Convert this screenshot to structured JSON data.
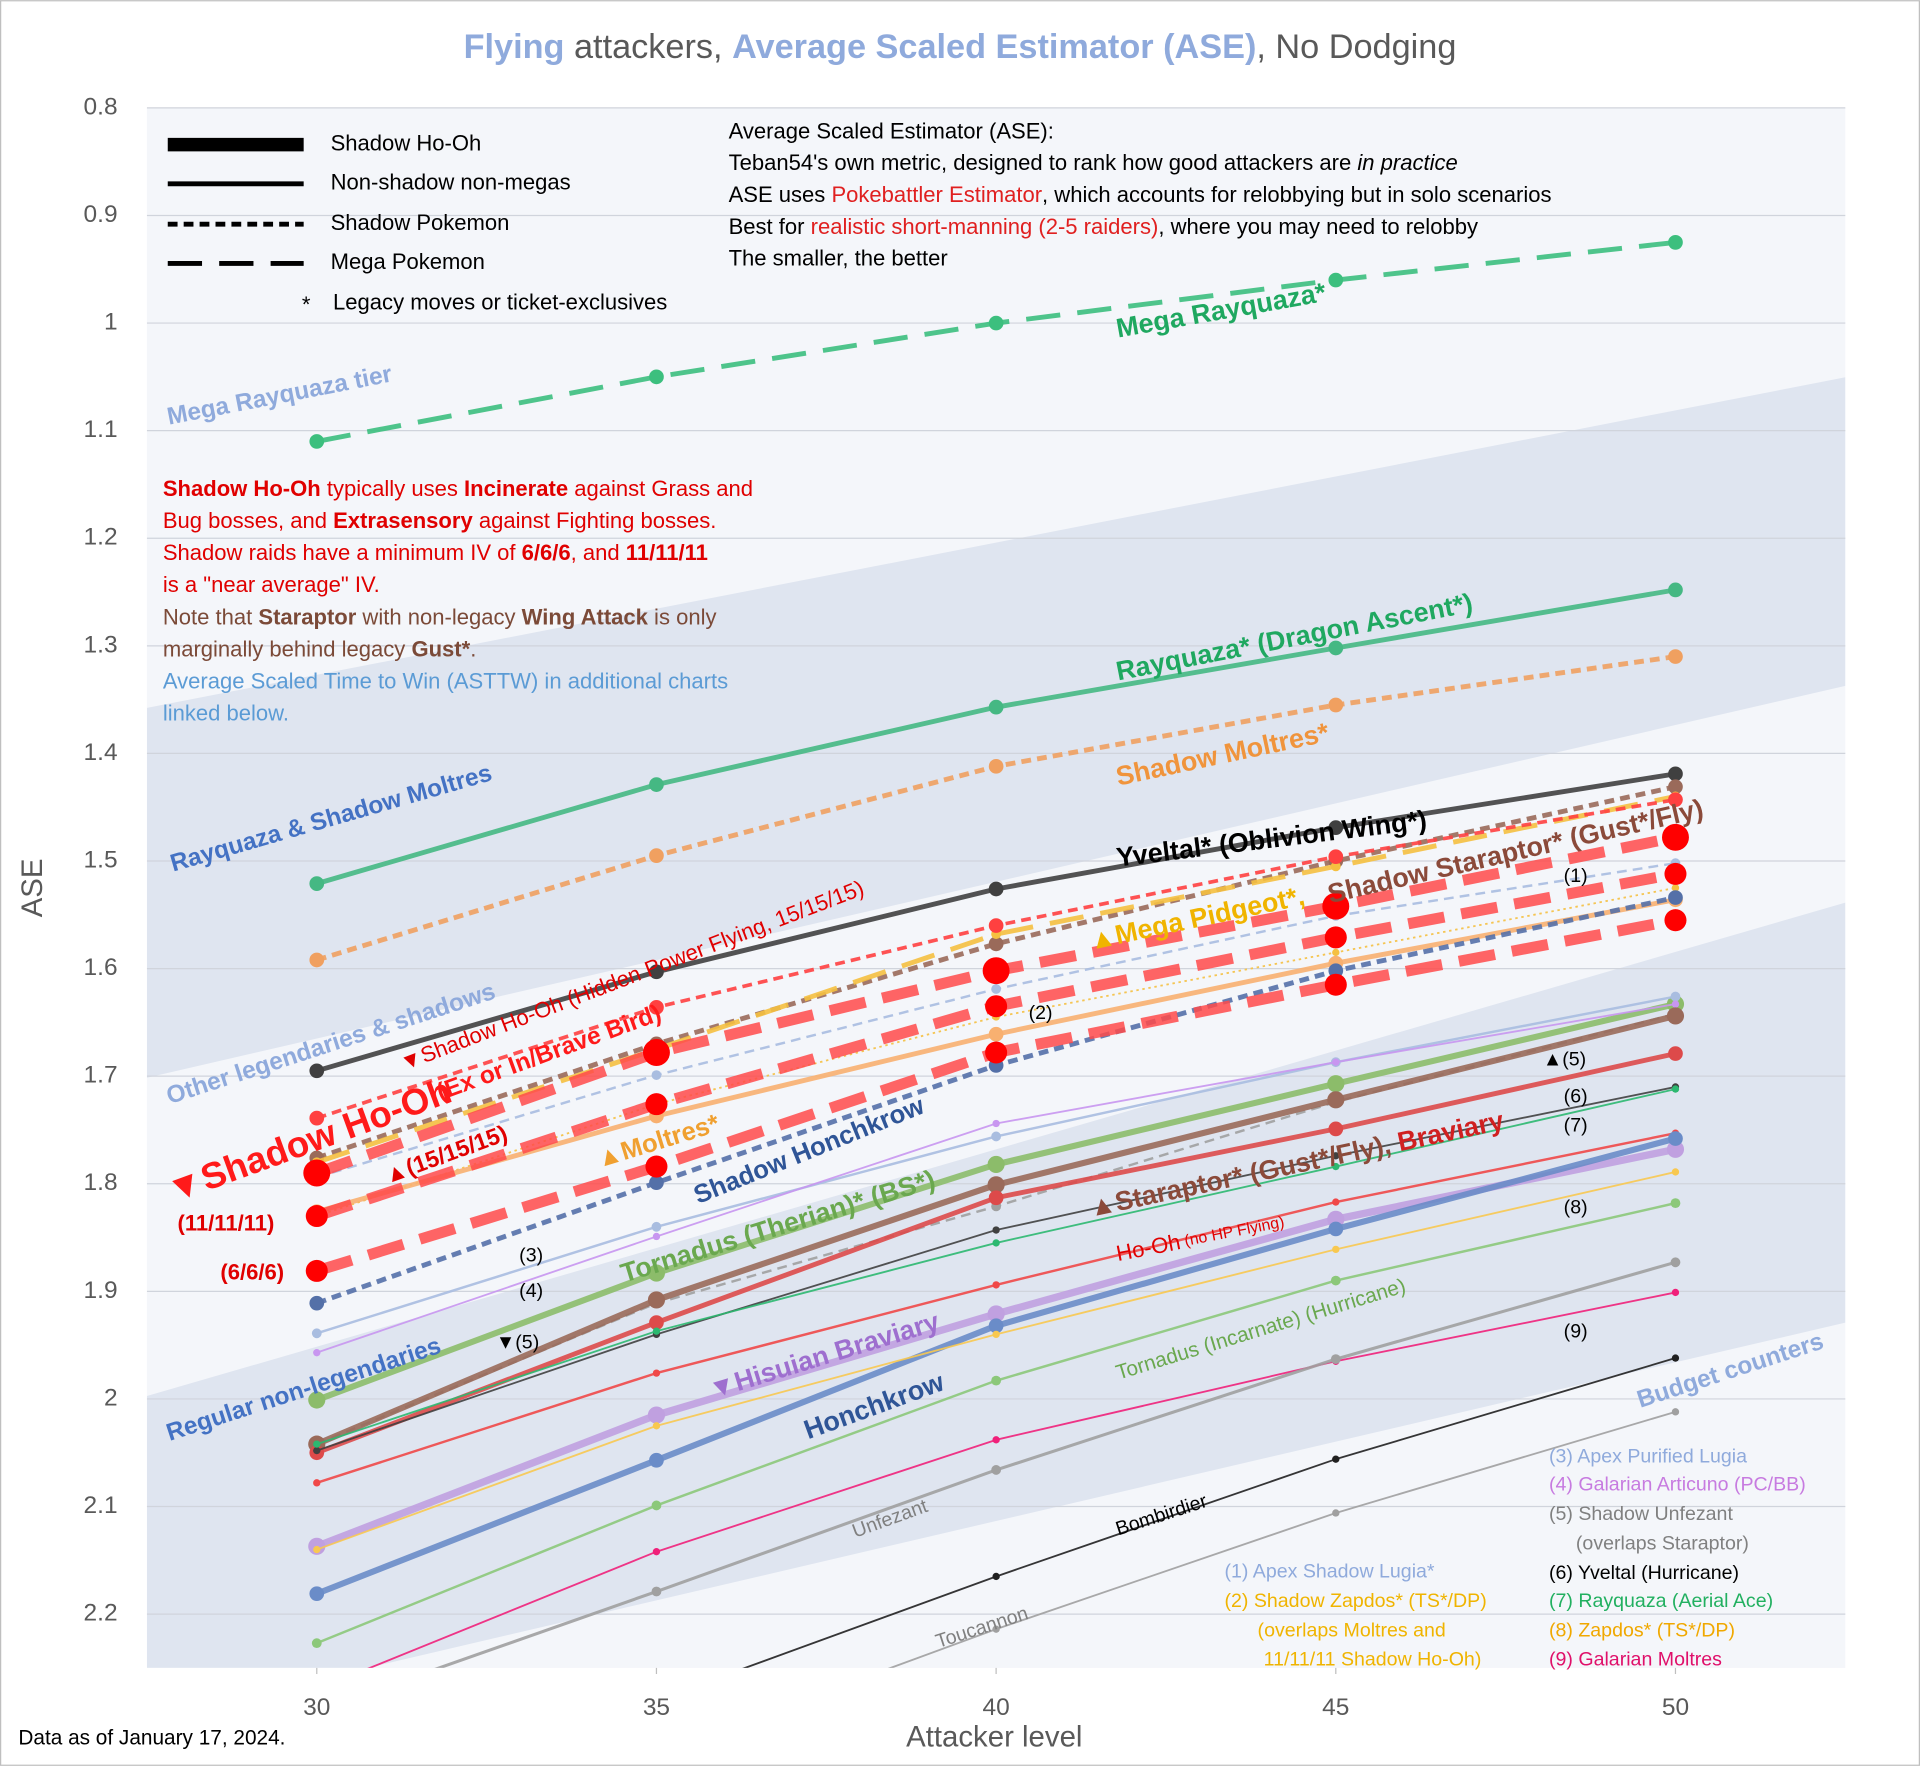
{
  "chart_data": {
    "type": "line",
    "title_runs": [
      {
        "text": "Flying",
        "color": "#8faadc",
        "bold": true
      },
      {
        "text": " attackers, ",
        "color": "#595959"
      },
      {
        "text": "Average Scaled Estimator (ASE)",
        "color": "#8faadc",
        "bold": true
      },
      {
        "text": ", No Dodging",
        "color": "#595959"
      }
    ],
    "xlabel": "Attacker level",
    "ylabel": "ASE",
    "footer": "Data as of January 17, 2024.",
    "x": [
      30,
      35,
      40,
      45,
      50
    ],
    "xlim": [
      27.5,
      52.5
    ],
    "xticks": [
      30,
      35,
      40,
      45,
      50
    ],
    "ylim": [
      2.25,
      0.8
    ],
    "yticks": [
      0.8,
      0.9,
      1,
      1.1,
      1.2,
      1.3,
      1.4,
      1.5,
      1.6,
      1.7,
      1.8,
      1.9,
      2,
      2.1,
      2.2
    ],
    "grid": true,
    "legend": [
      {
        "text": "Shadow Ho-Oh",
        "line_style": "heavy"
      },
      {
        "text": "Non-shadow non-megas",
        "line_style": "solid"
      },
      {
        "text": "Shadow Pokemon",
        "line_style": "dashed"
      },
      {
        "text": "Mega Pokemon",
        "line_style": "longdash"
      }
    ],
    "legend_note": {
      "symbol": "*",
      "text": "Legacy moves or ticket-exclusives"
    },
    "info": [
      [
        {
          "text": "Average Scaled Estimator (ASE):"
        }
      ],
      [
        {
          "text": "Teban54's own metric, designed to rank how good attackers are "
        },
        {
          "text": "in practice",
          "italic": true
        }
      ],
      [
        {
          "text": "ASE uses "
        },
        {
          "text": "Pokebattler Estimator",
          "color": "#e02020"
        },
        {
          "text": ", which accounts for relobbying but in solo scenarios"
        }
      ],
      [
        {
          "text": "Best for "
        },
        {
          "text": "realistic short-manning (2-5 raiders)",
          "color": "#e02020"
        },
        {
          "text": ", where you may need to relobby"
        }
      ],
      [
        {
          "text": "The smaller, the better"
        }
      ]
    ],
    "notes": [
      [
        {
          "text": "Shadow Ho-Oh",
          "bold": true,
          "color": "#e00000"
        },
        {
          "text": " typically uses ",
          "color": "#e00000"
        },
        {
          "text": "Incinerate",
          "bold": true,
          "color": "#e00000"
        },
        {
          "text": " against Grass and",
          "color": "#e00000"
        }
      ],
      [
        {
          "text": "Bug bosses, and ",
          "color": "#e00000"
        },
        {
          "text": "Extrasensory",
          "bold": true,
          "color": "#e00000"
        },
        {
          "text": " against Fighting bosses.",
          "color": "#e00000"
        }
      ],
      [
        {
          "text": "Shadow raids have a minimum IV of ",
          "color": "#e00000"
        },
        {
          "text": "6/6/6",
          "bold": true,
          "color": "#e00000"
        },
        {
          "text": ", and ",
          "color": "#e00000"
        },
        {
          "text": "11/11/11",
          "bold": true,
          "color": "#e00000"
        }
      ],
      [
        {
          "text": "is a \"near average\" IV.",
          "color": "#e00000"
        }
      ],
      [
        {
          "text": "Note that ",
          "color": "#7b4a38"
        },
        {
          "text": "Staraptor",
          "bold": true,
          "color": "#7b4a38"
        },
        {
          "text": " with non-legacy ",
          "color": "#7b4a38"
        },
        {
          "text": "Wing Attack",
          "bold": true,
          "color": "#7b4a38"
        },
        {
          "text": " is only",
          "color": "#7b4a38"
        }
      ],
      [
        {
          "text": "marginally behind legacy ",
          "color": "#7b4a38"
        },
        {
          "text": "Gust*",
          "bold": true,
          "color": "#7b4a38"
        },
        {
          "text": ".",
          "color": "#7b4a38"
        }
      ],
      [
        {
          "text": "Average Scaled Time to Win (ASTTW) in additional charts",
          "color": "#5b9bd5"
        }
      ],
      [
        {
          "text": "linked below.",
          "color": "#5b9bd5"
        }
      ]
    ],
    "series": [
      {
        "color": "#3cbf7e",
        "line_style": "longdash",
        "values": [
          1.11,
          1.05,
          1.0,
          0.96,
          0.925
        ]
      },
      {
        "color": "#45b883",
        "line_style": "solid",
        "values": [
          1.521,
          1.429,
          1.357,
          1.302,
          1.248
        ]
      },
      {
        "color": "#f0a060",
        "line_style": "dashed",
        "values": [
          1.592,
          1.495,
          1.412,
          1.355,
          1.31
        ]
      },
      {
        "color": "#404040",
        "line_style": "solid",
        "values": [
          1.695,
          1.603,
          1.526,
          1.469,
          1.419
        ]
      },
      {
        "color": "#9a6a5a",
        "line_style": "dashed",
        "values": [
          1.776,
          1.67,
          1.577,
          1.5,
          1.431
        ]
      },
      {
        "color": "#f5c040",
        "line_style": "longdash",
        "values": [
          1.78,
          1.675,
          1.568,
          1.505,
          1.44
        ]
      },
      {
        "color": "#ff4040",
        "line_style": "dashed",
        "values": [
          1.739,
          1.636,
          1.56,
          1.496,
          1.443
        ]
      },
      {
        "color": "#a9bde0",
        "line_style": "dashed",
        "values": [
          1.794,
          1.699,
          1.619,
          1.551,
          1.502
        ]
      },
      {
        "color": "#f5c040",
        "line_style": "dotted",
        "values": [
          1.83,
          1.726,
          1.645,
          1.585,
          1.525
        ]
      },
      {
        "color": "#f8b070",
        "line_style": "solid",
        "values": [
          1.826,
          1.737,
          1.661,
          1.595,
          1.536
        ]
      },
      {
        "color": "#5470a8",
        "line_style": "dashed",
        "values": [
          1.911,
          1.799,
          1.69,
          1.602,
          1.534
        ]
      },
      {
        "color": "#8cbc6a",
        "line_style": "solid",
        "values": [
          2.001,
          1.883,
          1.782,
          1.707,
          1.633
        ]
      },
      {
        "color": "#a9bde0",
        "line_style": "solid",
        "values": [
          1.939,
          1.84,
          1.756,
          1.687,
          1.626
        ]
      },
      {
        "color": "#c896f0",
        "line_style": "solid",
        "values": [
          1.957,
          1.849,
          1.744,
          1.687,
          1.633
        ]
      },
      {
        "color": "#a0a0a0",
        "line_style": "dashed",
        "values": [
          2.042,
          1.911,
          1.821,
          1.724,
          1.642
        ]
      },
      {
        "color": "#9a6a5a",
        "line_style": "solid",
        "values": [
          2.042,
          1.908,
          1.801,
          1.722,
          1.644
        ]
      },
      {
        "color": "#dd4a4a",
        "line_style": "solid",
        "values": [
          2.05,
          1.929,
          1.813,
          1.749,
          1.679
        ]
      },
      {
        "color": "#404040",
        "line_style": "solid",
        "values": [
          2.048,
          1.94,
          1.843,
          1.774,
          1.71
        ]
      },
      {
        "color": "#2cb870",
        "line_style": "solid",
        "values": [
          2.042,
          1.937,
          1.855,
          1.784,
          1.712
        ]
      },
      {
        "color": "#f04848",
        "line_style": "solid",
        "values": [
          2.078,
          1.976,
          1.894,
          1.817,
          1.753
        ]
      },
      {
        "color": "#c0a0e0",
        "line_style": "solid",
        "values": [
          2.137,
          2.015,
          1.921,
          1.833,
          1.768
        ]
      },
      {
        "color": "#6a8cc8",
        "line_style": "solid",
        "values": [
          2.181,
          2.057,
          1.932,
          1.842,
          1.758
        ]
      },
      {
        "color": "#f8c850",
        "line_style": "solid",
        "values": [
          2.14,
          2.025,
          1.94,
          1.861,
          1.789
        ]
      },
      {
        "color": "#8cc87a",
        "line_style": "solid",
        "values": [
          2.227,
          2.099,
          1.983,
          1.89,
          1.818
        ]
      },
      {
        "color": "#f0207a",
        "line_style": "solid",
        "values": [
          2.27,
          2.142,
          2.038,
          1.965,
          1.901
        ]
      },
      {
        "color": "#a0a0a0",
        "line_style": "solid",
        "values": [
          2.29,
          2.179,
          2.066,
          1.963,
          1.873
        ]
      },
      {
        "color": "#202020",
        "line_style": "solid",
        "values": [
          null,
          2.28,
          2.165,
          2.056,
          1.962
        ]
      },
      {
        "color": "#a0a0a0",
        "line_style": "solid",
        "values": [
          null,
          2.33,
          2.214,
          2.106,
          2.012
        ]
      },
      {
        "color": "#ff4a4a",
        "line_style": "heavy",
        "values": [
          1.79,
          1.678,
          1.602,
          1.542,
          1.478
        ]
      },
      {
        "color": "#ff4a4a",
        "line_style": "heavy",
        "values": [
          1.83,
          1.726,
          1.635,
          1.571,
          1.512
        ]
      },
      {
        "color": "#ff4a4a",
        "line_style": "heavy",
        "values": [
          1.881,
          1.784,
          1.678,
          1.615,
          1.555
        ]
      }
    ],
    "annotations": [
      {
        "runs": [
          {
            "text": "Mega Rayquaza*",
            "color": "#1fa860",
            "bold": true
          }
        ]
      },
      {
        "runs": [
          {
            "text": "Rayquaza* (Dragon Ascent*)",
            "color": "#1fa860",
            "bold": true
          }
        ]
      },
      {
        "runs": [
          {
            "text": "Shadow Moltres*",
            "color": "#f0943c",
            "bold": true
          }
        ]
      },
      {
        "runs": [
          {
            "text": "Yveltal* (Oblivion Wing*)",
            "color": "#000000",
            "bold": true
          }
        ]
      },
      {
        "runs": [
          {
            "text": "▲Mega Pidgeot*,",
            "color": "#f0b400",
            "bold": true
          }
        ]
      },
      {
        "runs": [
          {
            "text": "Shadow Staraptor* (Gust*/Fly)",
            "color": "#8b4a3a",
            "bold": true
          }
        ]
      },
      {
        "runs": [
          {
            "text": "(1)",
            "color": "#000000"
          }
        ]
      },
      {
        "runs": [
          {
            "text": "(2)",
            "color": "#000000"
          }
        ]
      },
      {
        "runs": [
          {
            "text": "▼Shadow Ho-Oh (Hidden Power Flying, 15/15/15)",
            "color": "#e00000"
          }
        ]
      },
      {
        "runs": [
          {
            "text": "▼Shadow Ho-Oh",
            "color": "#ff1a1a",
            "bold": true
          }
        ]
      },
      {
        "runs": [
          {
            "text": "(Ex or In/Brave Bird)",
            "color": "#ff1a1a",
            "bold": true
          }
        ]
      },
      {
        "runs": [
          {
            "text": "▲(15/15/15)",
            "color": "#e00000",
            "bold": true
          }
        ]
      },
      {
        "runs": [
          {
            "text": "(11/11/11)",
            "color": "#e00000",
            "bold": true
          }
        ]
      },
      {
        "runs": [
          {
            "text": "(6/6/6)",
            "color": "#e00000",
            "bold": true
          }
        ]
      },
      {
        "runs": [
          {
            "text": "▲Moltres*",
            "color": "#f0a030",
            "bold": true
          }
        ]
      },
      {
        "runs": [
          {
            "text": "Shadow Honchkrow",
            "color": "#2f5597",
            "bold": true
          }
        ]
      },
      {
        "runs": [
          {
            "text": "Tornadus (Therian)* (BS*)",
            "color": "#6aa84f",
            "bold": true
          }
        ]
      },
      {
        "runs": [
          {
            "text": "(3)",
            "color": "#000000"
          }
        ]
      },
      {
        "runs": [
          {
            "text": "(4)",
            "color": "#000000"
          }
        ]
      },
      {
        "runs": [
          {
            "text": "▼(5)",
            "color": "#000000"
          }
        ]
      },
      {
        "runs": [
          {
            "text": "▲(5)",
            "color": "#000000"
          }
        ]
      },
      {
        "runs": [
          {
            "text": "(6)",
            "color": "#000000"
          }
        ]
      },
      {
        "runs": [
          {
            "text": "(7)",
            "color": "#000000"
          }
        ]
      },
      {
        "runs": [
          {
            "text": "(8)",
            "color": "#000000"
          }
        ]
      },
      {
        "runs": [
          {
            "text": "(9)",
            "color": "#000000"
          }
        ]
      },
      {
        "runs": [
          {
            "text": "▲Staraptor* (Gust*/Fly), ",
            "color": "#8b4a3a",
            "bold": true
          },
          {
            "text": "Braviary",
            "color": "#d02020",
            "bold": true
          }
        ]
      },
      {
        "runs": [
          {
            "text": "Ho-Oh",
            "color": "#e00000"
          },
          {
            "text": " (no HP Flying)",
            "color": "#e00000",
            "small": true
          }
        ]
      },
      {
        "runs": [
          {
            "text": "▼Hisuian Braviary",
            "color": "#9e6fcf",
            "bold": true
          }
        ]
      },
      {
        "runs": [
          {
            "text": "Honchkrow",
            "color": "#2f5597",
            "bold": true
          }
        ]
      },
      {
        "runs": [
          {
            "text": "Tornadus (Incarnate) (Hurricane)",
            "color": "#6aa84f"
          }
        ]
      },
      {
        "runs": [
          {
            "text": "Unfezant",
            "color": "#808080"
          }
        ]
      },
      {
        "runs": [
          {
            "text": "Bombirdier",
            "color": "#000000"
          }
        ]
      },
      {
        "runs": [
          {
            "text": "Toucannon",
            "color": "#808080"
          }
        ]
      },
      {
        "runs": [
          {
            "text": "Mega Rayquaza tier",
            "color": "#8faadc",
            "bold": true
          }
        ]
      },
      {
        "runs": [
          {
            "text": "Rayquaza & Shadow Moltres",
            "color": "#4472c4",
            "bold": true
          }
        ]
      },
      {
        "runs": [
          {
            "text": "Other legendaries & shadows",
            "color": "#8faadc",
            "bold": true
          }
        ]
      },
      {
        "runs": [
          {
            "text": "Regular non-legendaries",
            "color": "#4472c4",
            "bold": true
          }
        ]
      },
      {
        "runs": [
          {
            "text": "Budget counters",
            "color": "#8faadc",
            "bold": true
          }
        ]
      }
    ],
    "footnotes": [
      {
        "text": "(1) Apex Shadow Lugia*",
        "color": "#8faadc"
      },
      {
        "text": "(2) Shadow Zapdos* (TS*/DP)",
        "color": "#f0b400"
      },
      {
        "text": "(overlaps Moltres and",
        "color": "#f0b400"
      },
      {
        "text": "11/11/11 Shadow Ho-Oh)",
        "color": "#f0b400"
      },
      {
        "text": "(3) Apex Purified Lugia",
        "color": "#8faadc"
      },
      {
        "text": "(4) Galarian Articuno (PC/BB)",
        "color": "#c77be0"
      },
      {
        "text": "(5) Shadow Unfezant",
        "color": "#808080"
      },
      {
        "text": "(overlaps Staraptor)",
        "color": "#808080"
      },
      {
        "text": "(6) Yveltal (Hurricane)",
        "color": "#000000"
      },
      {
        "text": "(7) Rayquaza (Aerial Ace)",
        "color": "#22b060"
      },
      {
        "text": "(8) Zapdos* (TS*/DP)",
        "color": "#f0a800"
      },
      {
        "text": "(9) Galarian Moltres",
        "color": "#e0106a"
      }
    ]
  }
}
